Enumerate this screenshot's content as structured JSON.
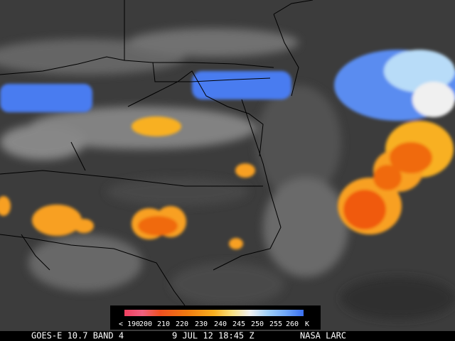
{
  "colorbar": {
    "labels": [
      "< 190",
      "200",
      "210",
      "220",
      "230",
      "240",
      "245",
      "250",
      "255",
      "260"
    ],
    "unit": "K"
  },
  "caption": {
    "satellite": "GOES-E 10.7 BAND 4",
    "time": "9 JUL 12 18:45 Z",
    "source": "NASA LARC"
  }
}
